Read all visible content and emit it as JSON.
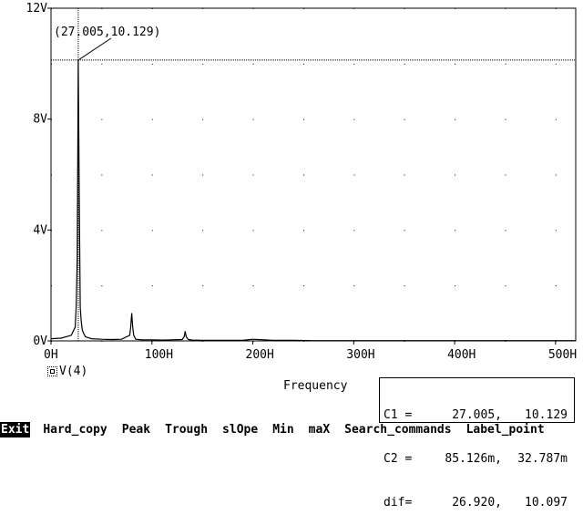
{
  "chart_data": {
    "type": "line",
    "xlabel": "Frequency",
    "ylabel": "",
    "xlim": [
      0,
      520
    ],
    "ylim": [
      0,
      12
    ],
    "x_ticks": [
      0,
      100,
      200,
      300,
      400,
      500
    ],
    "x_tick_labels": [
      "0H",
      "100H",
      "200H",
      "300H",
      "400H",
      "500H"
    ],
    "y_ticks": [
      0,
      4,
      8,
      12
    ],
    "y_tick_labels": [
      "0V",
      "4V",
      "8V",
      "12V"
    ],
    "grid": "dotted",
    "series": [
      {
        "name": "V(4)",
        "x": [
          0,
          10,
          20,
          24,
          25,
          26,
          27,
          28,
          29,
          30,
          31,
          32,
          34,
          40,
          50,
          60,
          70,
          78,
          79,
          80,
          81,
          82,
          84,
          90,
          100,
          110,
          120,
          130,
          132,
          133,
          134,
          136,
          140,
          150,
          160,
          170,
          180,
          190,
          200,
          220,
          240,
          260,
          280,
          300,
          350,
          400,
          450,
          500,
          520
        ],
        "y": [
          0.08,
          0.1,
          0.2,
          0.5,
          1.3,
          3.0,
          10.129,
          5.2,
          1.2,
          0.7,
          0.4,
          0.3,
          0.15,
          0.08,
          0.06,
          0.05,
          0.06,
          0.2,
          0.5,
          1.0,
          0.5,
          0.2,
          0.06,
          0.04,
          0.04,
          0.03,
          0.04,
          0.05,
          0.15,
          0.35,
          0.15,
          0.05,
          0.03,
          0.02,
          0.02,
          0.02,
          0.02,
          0.02,
          0.06,
          0.02,
          0.02,
          0.01,
          0.01,
          0.01,
          0.01,
          0.01,
          0.01,
          0.01,
          0.01
        ]
      }
    ],
    "cursor": {
      "x": 27.005,
      "y": 10.129,
      "label": "(27.005,10.129)"
    }
  },
  "legend": {
    "label": "V(4)"
  },
  "axis": {
    "x_title": "Frequency"
  },
  "cursor_box": {
    "rows": [
      {
        "label": "C1 =",
        "v1": "27.005,",
        "v2": "10.129"
      },
      {
        "label": "C2 =",
        "v1": "85.126m,",
        "v2": "32.787m"
      },
      {
        "label": "dif=",
        "v1": "26.920,",
        "v2": "10.097"
      }
    ]
  },
  "menu": {
    "items": [
      "Exit",
      "Hard_copy",
      "Peak",
      "Trough",
      "slOpe",
      "Min",
      "maX",
      "Search_commands",
      "Label_point"
    ],
    "active": "Exit"
  }
}
